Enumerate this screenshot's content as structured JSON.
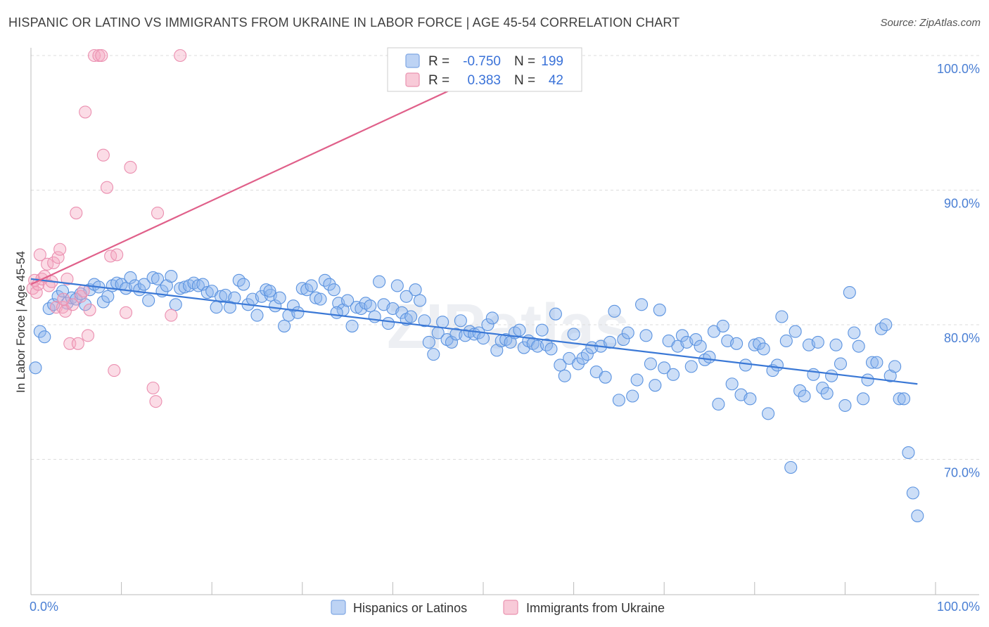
{
  "title": "HISPANIC OR LATINO VS IMMIGRANTS FROM UKRAINE IN LABOR FORCE | AGE 45-54 CORRELATION CHART",
  "source": "Source: ZipAtlas.com",
  "watermark": "ZIPatlas",
  "chart_data": {
    "type": "scatter",
    "title": "HISPANIC OR LATINO VS IMMIGRANTS FROM UKRAINE IN LABOR FORCE | AGE 45-54 CORRELATION CHART",
    "xlabel": "",
    "ylabel": "In Labor Force | Age 45-54",
    "xlim": [
      0,
      100
    ],
    "ylim": [
      60,
      101
    ],
    "x_tick_labels": [
      "0.0%",
      "100.0%"
    ],
    "y_ticks": [
      {
        "value": 100,
        "label": "100.0%"
      },
      {
        "value": 90,
        "label": "90.0%"
      },
      {
        "value": 80,
        "label": "80.0%"
      },
      {
        "value": 70,
        "label": "70.0%"
      }
    ],
    "grid": true,
    "legend_position": "top-center",
    "series": [
      {
        "name": "Hispanics or Latinos",
        "color": "#8fb6ee",
        "line_color": "#3a78d6",
        "R": "-0.750",
        "N": "199",
        "trend": {
          "x0": 0,
          "y0": 83.4,
          "x1": 98,
          "y1": 75.6
        },
        "points": [
          [
            0.5,
            76.8
          ],
          [
            1,
            79.5
          ],
          [
            1.5,
            79.1
          ],
          [
            2,
            81.2
          ],
          [
            2.5,
            81.5
          ],
          [
            3,
            82.1
          ],
          [
            3.5,
            82.5
          ],
          [
            4,
            81.6
          ],
          [
            4.5,
            82.0
          ],
          [
            5,
            81.9
          ],
          [
            5.5,
            82.3
          ],
          [
            6,
            81.5
          ],
          [
            6.5,
            82.6
          ],
          [
            7,
            83.0
          ],
          [
            7.5,
            82.8
          ],
          [
            8,
            81.7
          ],
          [
            8.5,
            82.1
          ],
          [
            9,
            82.9
          ],
          [
            9.5,
            83.1
          ],
          [
            10,
            83.0
          ],
          [
            10.5,
            82.7
          ],
          [
            11,
            83.5
          ],
          [
            11.5,
            82.9
          ],
          [
            12,
            82.6
          ],
          [
            12.5,
            83.0
          ],
          [
            13,
            81.8
          ],
          [
            13.5,
            83.5
          ],
          [
            14,
            83.4
          ],
          [
            14.5,
            82.5
          ],
          [
            15,
            82.9
          ],
          [
            15.5,
            83.6
          ],
          [
            16,
            81.5
          ],
          [
            16.5,
            82.7
          ],
          [
            17,
            82.8
          ],
          [
            17.5,
            82.9
          ],
          [
            18,
            83.1
          ],
          [
            18.5,
            82.9
          ],
          [
            19,
            83.0
          ],
          [
            19.5,
            82.4
          ],
          [
            20,
            82.5
          ],
          [
            20.5,
            81.3
          ],
          [
            21,
            82.1
          ],
          [
            21.5,
            82.2
          ],
          [
            22,
            81.3
          ],
          [
            22.5,
            82.0
          ],
          [
            23,
            83.3
          ],
          [
            23.5,
            83.0
          ],
          [
            24,
            81.5
          ],
          [
            24.5,
            81.9
          ],
          [
            25,
            80.7
          ],
          [
            25.5,
            82.1
          ],
          [
            26,
            82.6
          ],
          [
            26.5,
            82.2
          ],
          [
            27,
            81.4
          ],
          [
            27.5,
            82.0
          ],
          [
            28,
            79.9
          ],
          [
            28.5,
            80.7
          ],
          [
            29,
            81.4
          ],
          [
            29.5,
            80.9
          ],
          [
            30,
            82.7
          ],
          [
            30.5,
            82.6
          ],
          [
            31,
            82.9
          ],
          [
            31.5,
            82.0
          ],
          [
            32,
            81.9
          ],
          [
            32.5,
            83.3
          ],
          [
            33,
            83.0
          ],
          [
            33.5,
            82.6
          ],
          [
            34,
            81.6
          ],
          [
            34.5,
            81.1
          ],
          [
            35,
            81.8
          ],
          [
            35.5,
            79.9
          ],
          [
            36,
            81.3
          ],
          [
            36.5,
            81.2
          ],
          [
            37,
            81.6
          ],
          [
            37.5,
            81.4
          ],
          [
            38,
            80.6
          ],
          [
            38.5,
            83.2
          ],
          [
            39,
            81.5
          ],
          [
            39.5,
            80.1
          ],
          [
            40,
            81.2
          ],
          [
            40.5,
            82.9
          ],
          [
            41,
            80.9
          ],
          [
            41.5,
            80.4
          ],
          [
            42,
            80.6
          ],
          [
            42.5,
            82.6
          ],
          [
            43,
            81.8
          ],
          [
            43.5,
            80.3
          ],
          [
            44,
            78.7
          ],
          [
            44.5,
            77.8
          ],
          [
            45,
            79.4
          ],
          [
            45.5,
            80.2
          ],
          [
            46,
            78.9
          ],
          [
            46.5,
            78.7
          ],
          [
            47,
            79.3
          ],
          [
            47.5,
            80.3
          ],
          [
            48,
            79.2
          ],
          [
            48.5,
            79.5
          ],
          [
            49,
            79.3
          ],
          [
            49.5,
            79.4
          ],
          [
            50,
            79.0
          ],
          [
            50.5,
            80.0
          ],
          [
            51,
            80.5
          ],
          [
            51.5,
            78.1
          ],
          [
            52,
            78.8
          ],
          [
            52.5,
            78.9
          ],
          [
            53,
            78.7
          ],
          [
            53.5,
            79.4
          ],
          [
            54,
            79.6
          ],
          [
            54.5,
            78.3
          ],
          [
            55,
            78.8
          ],
          [
            55.5,
            78.6
          ],
          [
            56,
            78.4
          ],
          [
            56.5,
            79.6
          ],
          [
            57,
            78.5
          ],
          [
            57.5,
            78.2
          ],
          [
            58,
            80.8
          ],
          [
            58.5,
            77.0
          ],
          [
            59,
            76.2
          ],
          [
            59.5,
            77.5
          ],
          [
            60,
            79.3
          ],
          [
            60.5,
            77.1
          ],
          [
            61,
            77.5
          ],
          [
            61.5,
            77.8
          ],
          [
            62,
            78.3
          ],
          [
            62.5,
            76.5
          ],
          [
            63,
            78.4
          ],
          [
            63.5,
            76.1
          ],
          [
            64,
            78.7
          ],
          [
            64.5,
            81.0
          ],
          [
            65,
            74.4
          ],
          [
            65.5,
            78.9
          ],
          [
            66,
            79.4
          ],
          [
            66.5,
            74.7
          ],
          [
            67,
            75.9
          ],
          [
            67.5,
            81.5
          ],
          [
            68,
            79.2
          ],
          [
            68.5,
            77.1
          ],
          [
            69,
            75.5
          ],
          [
            69.5,
            81.1
          ],
          [
            70,
            76.8
          ],
          [
            70.5,
            78.8
          ],
          [
            71,
            76.3
          ],
          [
            71.5,
            78.4
          ],
          [
            72,
            79.2
          ],
          [
            72.5,
            78.7
          ],
          [
            73,
            76.9
          ],
          [
            73.5,
            78.9
          ],
          [
            74,
            78.4
          ],
          [
            74.5,
            77.4
          ],
          [
            75,
            77.6
          ],
          [
            75.5,
            79.5
          ],
          [
            76,
            74.1
          ],
          [
            76.5,
            79.9
          ],
          [
            77,
            78.8
          ],
          [
            77.5,
            75.6
          ],
          [
            78,
            78.6
          ],
          [
            78.5,
            74.8
          ],
          [
            79,
            77.0
          ],
          [
            79.5,
            74.5
          ],
          [
            80,
            78.5
          ],
          [
            80.5,
            78.6
          ],
          [
            81,
            78.2
          ],
          [
            81.5,
            73.4
          ],
          [
            82,
            76.6
          ],
          [
            82.5,
            77.0
          ],
          [
            83,
            80.6
          ],
          [
            83.5,
            78.8
          ],
          [
            84,
            69.4
          ],
          [
            84.5,
            79.5
          ],
          [
            85,
            75.1
          ],
          [
            85.5,
            74.7
          ],
          [
            86,
            78.5
          ],
          [
            86.5,
            76.3
          ],
          [
            87,
            78.7
          ],
          [
            87.5,
            75.3
          ],
          [
            88,
            74.9
          ],
          [
            88.5,
            76.2
          ],
          [
            89,
            78.5
          ],
          [
            89.5,
            77.1
          ],
          [
            90,
            74.0
          ],
          [
            90.5,
            82.4
          ],
          [
            91,
            79.4
          ],
          [
            91.5,
            78.4
          ],
          [
            92,
            74.5
          ],
          [
            92.5,
            75.9
          ],
          [
            93,
            77.2
          ],
          [
            93.5,
            77.2
          ],
          [
            94,
            79.7
          ],
          [
            94.5,
            80.0
          ],
          [
            95,
            76.2
          ],
          [
            95.5,
            76.9
          ],
          [
            96,
            74.5
          ],
          [
            96.5,
            74.5
          ],
          [
            97,
            70.5
          ],
          [
            97.5,
            67.5
          ],
          [
            98,
            65.8
          ],
          [
            41.5,
            82.1
          ],
          [
            33.8,
            80.9
          ],
          [
            26.4,
            82.5
          ]
        ]
      },
      {
        "name": "Immigrants from Ukraine",
        "color": "#f4a8c0",
        "line_color": "#e0608a",
        "R": "0.383",
        "N": "42",
        "trend": {
          "x0": 0,
          "y0": 83.0,
          "x1": 53,
          "y1": 99.5
        },
        "points": [
          [
            0.2,
            82.7
          ],
          [
            0.4,
            83.3
          ],
          [
            0.6,
            82.4
          ],
          [
            0.8,
            83.0
          ],
          [
            1.0,
            85.2
          ],
          [
            1.2,
            83.4
          ],
          [
            1.5,
            83.6
          ],
          [
            1.8,
            84.5
          ],
          [
            2,
            82.9
          ],
          [
            2.3,
            83.2
          ],
          [
            2.5,
            84.6
          ],
          [
            2.8,
            81.3
          ],
          [
            3,
            85.0
          ],
          [
            3.2,
            85.6
          ],
          [
            3.5,
            81.3
          ],
          [
            3.8,
            81.0
          ],
          [
            4,
            83.4
          ],
          [
            4.3,
            78.6
          ],
          [
            4.6,
            81.5
          ],
          [
            5,
            88.3
          ],
          [
            5.2,
            78.6
          ],
          [
            5.5,
            82.1
          ],
          [
            5.8,
            82.5
          ],
          [
            6,
            95.8
          ],
          [
            6.3,
            79.2
          ],
          [
            6.5,
            81.1
          ],
          [
            7,
            100
          ],
          [
            7.5,
            100
          ],
          [
            7.8,
            100
          ],
          [
            8,
            92.6
          ],
          [
            8.4,
            90.2
          ],
          [
            8.8,
            85.1
          ],
          [
            9.2,
            76.6
          ],
          [
            9.5,
            85.2
          ],
          [
            10.5,
            80.9
          ],
          [
            11,
            91.7
          ],
          [
            13.5,
            75.3
          ],
          [
            13.8,
            74.3
          ],
          [
            14,
            88.3
          ],
          [
            15.5,
            80.7
          ],
          [
            16.5,
            100
          ],
          [
            3.6,
            81.9
          ]
        ]
      }
    ]
  }
}
